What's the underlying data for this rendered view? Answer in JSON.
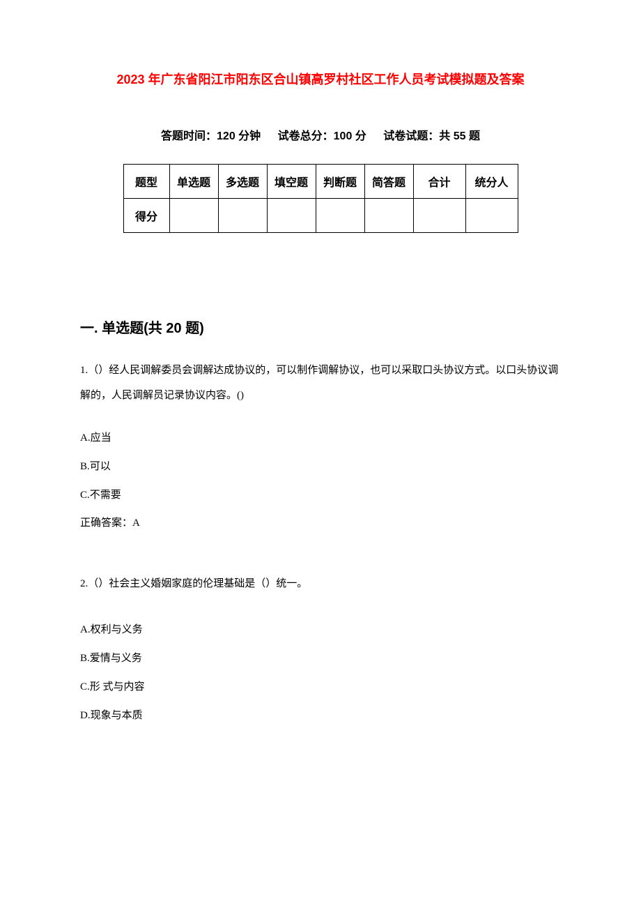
{
  "title": "2023 年广东省阳江市阳东区合山镇高罗村社区工作人员考试模拟题及答案",
  "meta": {
    "time_label": "答题时间：120 分钟",
    "total_label": "试卷总分：100 分",
    "count_label": "试卷试题：共 55 题"
  },
  "table": {
    "headers": [
      "题型",
      "单选题",
      "多选题",
      "填空题",
      "判断题",
      "简答题",
      "合计",
      "统分人"
    ],
    "row_label": "得分"
  },
  "section1": {
    "heading": "一. 单选题(共 20 题)",
    "q1": {
      "text": "1.（）经人民调解委员会调解达成协议的，可以制作调解协议，也可以采取口头协议方式。以口头协议调解的，人民调解员记录协议内容。()",
      "options": {
        "a": "A.应当",
        "b": "B.可以",
        "c": "C.不需要"
      },
      "answer": "正确答案：A"
    },
    "q2": {
      "text": "2.（）社会主义婚姻家庭的伦理基础是（）统一。",
      "options": {
        "a": "A.权利与义务",
        "b": "B.爱情与义务",
        "c": "C.形 式与内容",
        "d": "D.现象与本质"
      }
    }
  },
  "colors": {
    "title_color": "#ff0000",
    "text_color": "#000000",
    "background": "#ffffff",
    "border_color": "#000000"
  }
}
